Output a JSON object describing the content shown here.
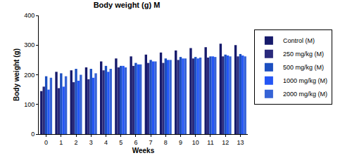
{
  "chart_data": {
    "type": "bar",
    "title": "Body weight (g) M",
    "x_label": "Weeks",
    "y_label": "Body weight (g)",
    "categories": [
      "0",
      "1",
      "2",
      "3",
      "4",
      "5",
      "6",
      "7",
      "8",
      "9",
      "10",
      "11",
      "12",
      "13"
    ],
    "series": [
      {
        "name": "Control (M)",
        "color": "#161a6b",
        "values": [
          145,
          210,
          215,
          225,
          245,
          255,
          262,
          268,
          275,
          282,
          290,
          293,
          305,
          300
        ]
      },
      {
        "name": "250 mg/kg (M)",
        "color": "#2a2a7c",
        "values": [
          160,
          155,
          175,
          185,
          215,
          225,
          230,
          240,
          240,
          250,
          255,
          258,
          262,
          262
        ]
      },
      {
        "name": "500 mg/kg (M)",
        "color": "#1c4fc0",
        "values": [
          195,
          205,
          220,
          220,
          230,
          230,
          240,
          250,
          255,
          260,
          260,
          262,
          268,
          270
        ]
      },
      {
        "name": "1000 mg/kg (M)",
        "color": "#2456f5",
        "values": [
          150,
          160,
          180,
          190,
          210,
          230,
          235,
          245,
          250,
          255,
          255,
          262,
          265,
          265
        ]
      },
      {
        "name": "2000 mg/kg (M)",
        "color": "#3563d6",
        "values": [
          190,
          195,
          200,
          205,
          220,
          225,
          235,
          245,
          250,
          255,
          258,
          260,
          262,
          262
        ]
      }
    ],
    "ylim": [
      0,
      400
    ],
    "yticks": [
      0,
      100,
      200,
      300,
      400
    ],
    "grid": false,
    "legend": "right"
  }
}
